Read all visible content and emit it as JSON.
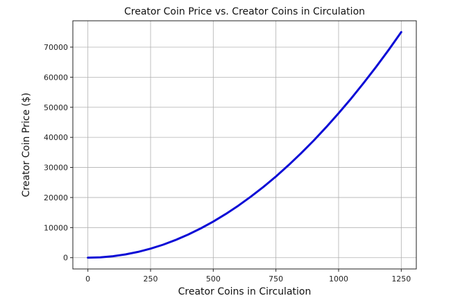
{
  "chart_data": {
    "type": "line",
    "title": "Creator Coin Price vs. Creator Coins in Circulation",
    "xlabel": "Creator Coins in Circulation",
    "ylabel": "Creator Coin Price ($)",
    "xlim": [
      -60,
      1310
    ],
    "ylim": [
      -3750,
      78750
    ],
    "x_ticks": [
      0,
      250,
      500,
      750,
      1000,
      1250
    ],
    "y_ticks": [
      0,
      10000,
      20000,
      30000,
      40000,
      50000,
      60000,
      70000
    ],
    "grid": true,
    "series": [
      {
        "color": "#0b0bd6",
        "x": [
          0,
          50,
          100,
          150,
          200,
          250,
          300,
          350,
          400,
          450,
          500,
          550,
          600,
          650,
          700,
          750,
          800,
          850,
          900,
          950,
          1000,
          1050,
          1100,
          1150,
          1200,
          1250
        ],
        "y": [
          0,
          120,
          480,
          1080,
          1920,
          3000,
          4320,
          5880,
          7680,
          9720,
          12000,
          14520,
          17280,
          20280,
          23520,
          27000,
          30720,
          34680,
          38880,
          43320,
          48000,
          52920,
          58080,
          63480,
          69120,
          75000
        ]
      }
    ]
  }
}
